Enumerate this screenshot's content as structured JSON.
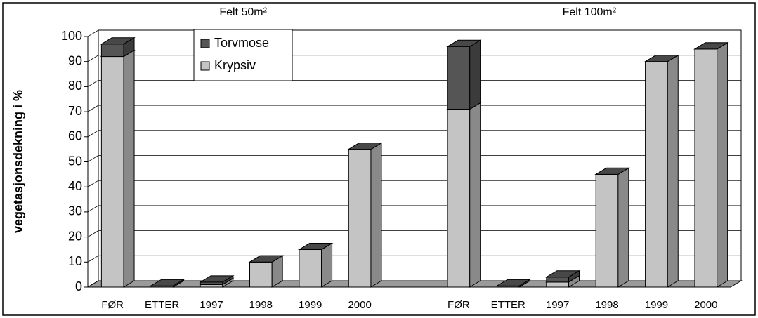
{
  "chart_data": {
    "type": "bar3d_stacked",
    "ylabel": "vegetasjonsdekning i %",
    "annotations": [
      "Felt 50m²",
      "Felt 100m²"
    ],
    "categories": [
      "FØR",
      "ETTER",
      "1997",
      "1998",
      "1999",
      "2000",
      null,
      "FØR",
      "ETTER",
      "1997",
      "1998",
      "1999",
      "2000"
    ],
    "series": [
      {
        "name": "Krypsiv",
        "color": "#c4c4c4",
        "values": [
          92,
          0,
          1,
          10,
          15,
          55,
          null,
          71,
          0,
          2,
          45,
          90,
          95
        ]
      },
      {
        "name": "Torvmose",
        "color": "#555555",
        "values": [
          5,
          0.5,
          1,
          0,
          0,
          0,
          null,
          25,
          0.5,
          2,
          0,
          0,
          0
        ]
      }
    ],
    "ylim": [
      0,
      100
    ],
    "yticks": [
      0,
      10,
      20,
      30,
      40,
      50,
      60,
      70,
      80,
      90,
      100
    ],
    "grid": true,
    "legend": "top-left"
  }
}
